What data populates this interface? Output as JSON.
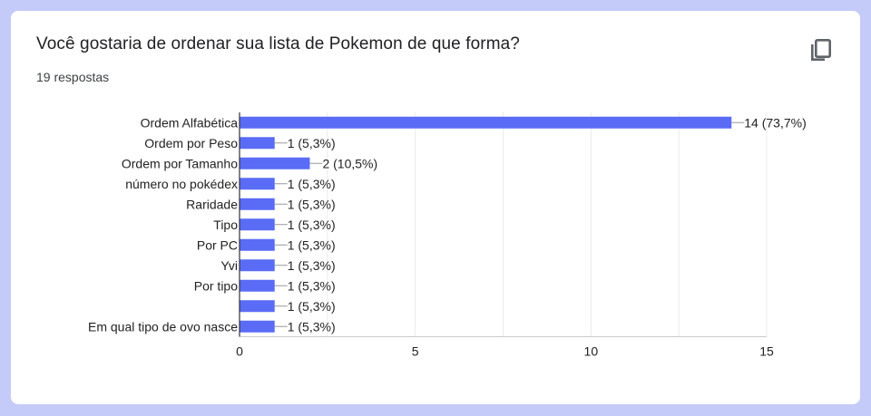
{
  "question": {
    "title": "Você gostaria de ordenar sua lista de Pokemon de que forma?",
    "responses": "19 respostas"
  },
  "icons": {
    "copy": "copy-icon"
  },
  "colors": {
    "bar": "#5a6cf5",
    "grid": "#ebebeb",
    "axis": "#333333",
    "background": "#c5cbf8"
  },
  "chart_data": {
    "type": "bar",
    "orientation": "horizontal",
    "categories": [
      "Ordem Alfabética",
      "Ordem por Peso",
      "Ordem por Tamanho",
      "número no pokédex",
      "Raridade",
      "Tipo",
      "Por PC",
      "Yvi",
      "Por tipo",
      "",
      "Em qual tipo de ovo nasce"
    ],
    "values": [
      14,
      1,
      2,
      1,
      1,
      1,
      1,
      1,
      1,
      1,
      1
    ],
    "value_labels": [
      "14 (73,7%)",
      "1 (5,3%)",
      "2 (10,5%)",
      "1 (5,3%)",
      "1 (5,3%)",
      "1 (5,3%)",
      "1 (5,3%)",
      "1 (5,3%)",
      "1 (5,3%)",
      "1 (5,3%)",
      "1 (5,3%)"
    ],
    "xlim": [
      0,
      15
    ],
    "xticks": [
      0,
      5,
      10,
      15
    ],
    "grid": true
  }
}
